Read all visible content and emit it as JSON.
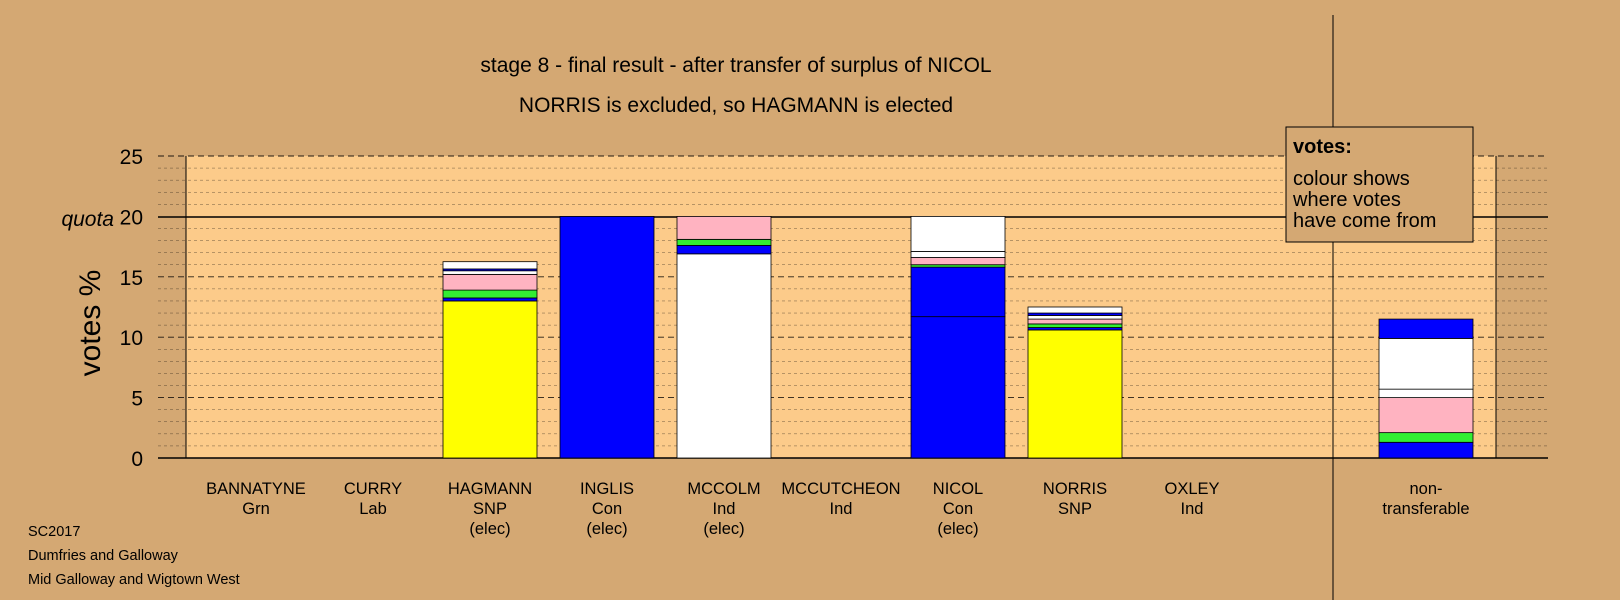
{
  "chart_data": {
    "type": "bar",
    "stacked": true,
    "title": "stage 8 - final result - after transfer of surplus of NICOL",
    "subtitle": "NORRIS is excluded, so HAGMANN is elected",
    "ylabel": "votes %",
    "ylim": [
      0,
      25
    ],
    "yticks": [
      0,
      5,
      10,
      15,
      20,
      25
    ],
    "quota": 20,
    "quota_label": "quota",
    "categories": [
      {
        "name": "BANNATYNE",
        "party": "Grn",
        "status": ""
      },
      {
        "name": "CURRY",
        "party": "Lab",
        "status": ""
      },
      {
        "name": "HAGMANN",
        "party": "SNP",
        "status": "(elec)"
      },
      {
        "name": "INGLIS",
        "party": "Con",
        "status": "(elec)"
      },
      {
        "name": "MCCOLM",
        "party": "Ind",
        "status": "(elec)"
      },
      {
        "name": "MCCUTCHEON",
        "party": "Ind",
        "status": ""
      },
      {
        "name": "NICOL",
        "party": "Con",
        "status": "(elec)"
      },
      {
        "name": "NORRIS",
        "party": "SNP",
        "status": ""
      },
      {
        "name": "OXLEY",
        "party": "Ind",
        "status": ""
      },
      {
        "name": "non-",
        "party": "transferable",
        "status": ""
      }
    ],
    "stacks": [
      [],
      [],
      [
        {
          "value": 13.0,
          "color": "#ffff00"
        },
        {
          "value": 0.25,
          "color": "#0000ff"
        },
        {
          "value": 0.65,
          "color": "#33ee33"
        },
        {
          "value": 1.3,
          "color": "#ffb3c1"
        },
        {
          "value": 0.3,
          "color": "#ffffff"
        },
        {
          "value": 0.15,
          "color": "#0000ff"
        },
        {
          "value": 0.6,
          "color": "#ffffff"
        }
      ],
      [
        {
          "value": 20.0,
          "color": "#0000ff"
        }
      ],
      [
        {
          "value": 16.9,
          "color": "#ffffff"
        },
        {
          "value": 0.7,
          "color": "#0000ff"
        },
        {
          "value": 0.5,
          "color": "#33ee33"
        },
        {
          "value": 1.9,
          "color": "#ffb3c1"
        }
      ],
      [],
      [
        {
          "value": 11.7,
          "color": "#0000ff"
        },
        {
          "value": 4.1,
          "color": "#0000ff"
        },
        {
          "value": 0.2,
          "color": "#33ee33"
        },
        {
          "value": 0.6,
          "color": "#ffb3c1"
        },
        {
          "value": 0.5,
          "color": "#ffffff"
        },
        {
          "value": 2.9,
          "color": "#ffffff"
        }
      ],
      [
        {
          "value": 10.6,
          "color": "#ffff00"
        },
        {
          "value": 0.2,
          "color": "#0000ff"
        },
        {
          "value": 0.3,
          "color": "#33ee33"
        },
        {
          "value": 0.4,
          "color": "#ffb3c1"
        },
        {
          "value": 0.3,
          "color": "#ffffff"
        },
        {
          "value": 0.2,
          "color": "#0000ff"
        },
        {
          "value": 0.5,
          "color": "#ffffff"
        }
      ],
      [],
      [
        {
          "value": 1.3,
          "color": "#0000ff"
        },
        {
          "value": 0.8,
          "color": "#33ee33"
        },
        {
          "value": 2.9,
          "color": "#ffb3c1"
        },
        {
          "value": 0.7,
          "color": "#ffffff"
        },
        {
          "value": 4.2,
          "color": "#ffffff"
        },
        {
          "value": 1.6,
          "color": "#0000ff"
        }
      ]
    ],
    "colors": {
      "background": "#d4a873",
      "plot_background": "#fccb8a",
      "snp": "#ffff00",
      "con": "#0000ff",
      "grn": "#33ee33",
      "lab": "#ffb3c1",
      "ind": "#ffffff"
    },
    "grid": true,
    "legend_position": "top-right"
  },
  "legend": {
    "title": "votes:",
    "lines": [
      "colour shows",
      "where votes",
      "have come from"
    ]
  },
  "footer": {
    "lines": [
      "SC2017",
      "Dumfries and Galloway",
      "Mid Galloway and Wigtown West"
    ]
  }
}
